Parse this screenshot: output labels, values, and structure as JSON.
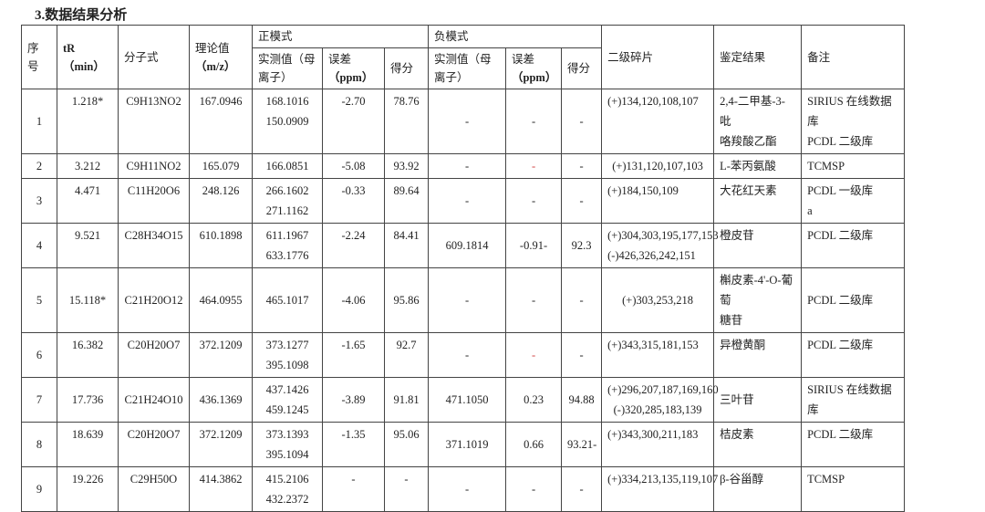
{
  "section_title": "3.数据结果分析",
  "header": {
    "seq": [
      "序",
      "号"
    ],
    "tr": [
      "tR",
      "（min）"
    ],
    "formula": "分子式",
    "theoretical": [
      "理论值",
      "（m/z）"
    ],
    "positive_mode": "正模式",
    "negative_mode": "负模式",
    "measured": [
      "实测值（母",
      "离子）"
    ],
    "error": [
      "误差",
      "（ppm）"
    ],
    "score": "得分",
    "fragments": "二级碎片",
    "identification": "鉴定结果",
    "remarks": "备注"
  },
  "accent_colors": {
    "highlight_dash": "#d04040"
  },
  "rows": [
    {
      "seq": "1",
      "tr": "1.218*",
      "formula": "C9H13NO2",
      "theo": "167.0946",
      "pos_meas": [
        "168.1016",
        "150.0909"
      ],
      "pos_err": "-2.70",
      "pos_score": "78.76",
      "neg_meas": "-",
      "neg_err": "-",
      "neg_score": "-",
      "frag": [
        "(+)134,120,108,107"
      ],
      "ident": [
        "2,4-二甲基-3-吡",
        "咯羧酸乙酯"
      ],
      "remark": [
        "SIRIUS 在线数据库",
        "PCDL 二级库"
      ]
    },
    {
      "seq": "2",
      "tr": "3.212",
      "formula": "C9H11NO2",
      "theo": "165.079",
      "pos_meas": [
        "166.0851"
      ],
      "pos_err": "-5.08",
      "pos_score": "93.92",
      "neg_meas": "-",
      "neg_err": "-",
      "neg_score": "-",
      "neg_err_red": true,
      "frag": [
        "(+)131,120,107,103"
      ],
      "ident": [
        "L-苯丙氨酸"
      ],
      "remark": [
        "TCMSP"
      ]
    },
    {
      "seq": "3",
      "tr": "4.471",
      "formula": "C11H20O6",
      "theo": "248.126",
      "pos_meas": [
        "266.1602",
        "271.1162"
      ],
      "pos_err": "-0.33",
      "pos_score": "89.64",
      "neg_meas": "-",
      "neg_err": "-",
      "neg_score": "-",
      "frag": [
        "(+)184,150,109"
      ],
      "ident": [
        "大花红天素"
      ],
      "remark": [
        "PCDL 一级库",
        "a"
      ]
    },
    {
      "seq": "4",
      "tr": "9.521",
      "formula": "C28H34O15",
      "theo": "610.1898",
      "pos_meas": [
        "611.1967",
        "633.1776"
      ],
      "pos_err": "-2.24",
      "pos_score": "84.41",
      "neg_meas": "609.1814",
      "neg_err": "-0.91-",
      "neg_score": "92.3",
      "frag": [
        "(+)304,303,195,177,153",
        "(-)426,326,242,151"
      ],
      "ident": [
        "橙皮苷"
      ],
      "remark": [
        "PCDL 二级库"
      ]
    },
    {
      "seq": "5",
      "tr": "15.118*",
      "formula": "C21H20O12",
      "theo": "464.0955",
      "pos_meas": [
        "465.1017"
      ],
      "pos_err": "-4.06",
      "pos_score": "95.86",
      "neg_meas": "-",
      "neg_err": "-",
      "neg_score": "-",
      "frag": [
        "(+)303,253,218"
      ],
      "ident": [
        "槲皮素-4'-O-葡萄",
        "糖苷"
      ],
      "remark": [
        "PCDL 二级库"
      ],
      "middle": true
    },
    {
      "seq": "6",
      "tr": "16.382",
      "formula": "C20H20O7",
      "theo": "372.1209",
      "pos_meas": [
        "373.1277",
        "395.1098"
      ],
      "pos_err": "-1.65",
      "pos_score": "92.7",
      "neg_meas": "-",
      "neg_err": "-",
      "neg_score": "-",
      "neg_err_red": true,
      "frag": [
        "(+)343,315,181,153"
      ],
      "ident": [
        "异橙黄酮"
      ],
      "remark": [
        "PCDL 二级库"
      ]
    },
    {
      "seq": "7",
      "tr": "17.736",
      "formula": "C21H24O10",
      "theo": "436.1369",
      "pos_meas": [
        "437.1426",
        "459.1245"
      ],
      "pos_err": "-3.89",
      "pos_score": "91.81",
      "neg_meas": "471.1050",
      "neg_err": "0.23",
      "neg_score": "94.88",
      "frag": [
        "(+)296,207,187,169,160",
        "(-)320,285,183,139"
      ],
      "ident": [
        "三叶苷"
      ],
      "remark": [
        "SIRIUS 在线数据库"
      ],
      "middle": true
    },
    {
      "seq": "8",
      "tr": "18.639",
      "formula": "C20H20O7",
      "theo": "372.1209",
      "pos_meas": [
        "373.1393",
        "395.1094"
      ],
      "pos_err": "-1.35",
      "pos_score": "95.06",
      "neg_meas": "371.1019",
      "neg_err": "0.66",
      "neg_score": "93.21-",
      "frag": [
        "(+)343,300,211,183"
      ],
      "ident": [
        "桔皮素"
      ],
      "remark": [
        "PCDL 二级库"
      ]
    },
    {
      "seq": "9",
      "tr": "19.226",
      "formula": "C29H50O",
      "theo": "414.3862",
      "pos_meas": [
        "415.2106",
        "432.2372"
      ],
      "pos_err": "-",
      "pos_score": "-",
      "neg_meas": "-",
      "neg_err": "-",
      "neg_score": "-",
      "frag": [
        "(+)334,213,135,119,107"
      ],
      "ident": [
        "β-谷甾醇"
      ],
      "remark": [
        "TCMSP"
      ]
    }
  ]
}
